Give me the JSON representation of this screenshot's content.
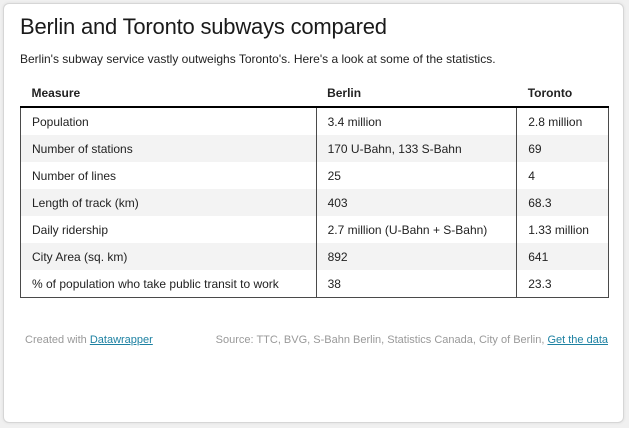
{
  "title": "Berlin and Toronto subways compared",
  "subtitle": "Berlin's subway service vastly outweighs Toronto's. Here's a look at some of the statistics.",
  "chart_data": {
    "type": "table",
    "columns": [
      "Measure",
      "Berlin",
      "Toronto"
    ],
    "rows": [
      [
        "Population",
        "3.4 million",
        "2.8 million"
      ],
      [
        "Number of stations",
        "170 U-Bahn, 133 S-Bahn",
        "69"
      ],
      [
        "Number of lines",
        "25",
        "4"
      ],
      [
        "Length of track (km)",
        "403",
        "68.3"
      ],
      [
        "Daily ridership",
        "2.7 million (U-Bahn + S-Bahn)",
        "1.33 million"
      ],
      [
        "City Area (sq. km)",
        "892",
        "641"
      ],
      [
        "% of population who take public transit to work",
        "38",
        "23.3"
      ]
    ]
  },
  "footer": {
    "created_with": "Created with",
    "tool_link": "Datawrapper",
    "source": "Source: TTC, BVG, S-Bahn Berlin, Statistics Canada, City of Berlin,",
    "data_link": "Get the data"
  },
  "colors": {
    "link": "#1d81a2",
    "row_alt": "#f3f3f3"
  }
}
